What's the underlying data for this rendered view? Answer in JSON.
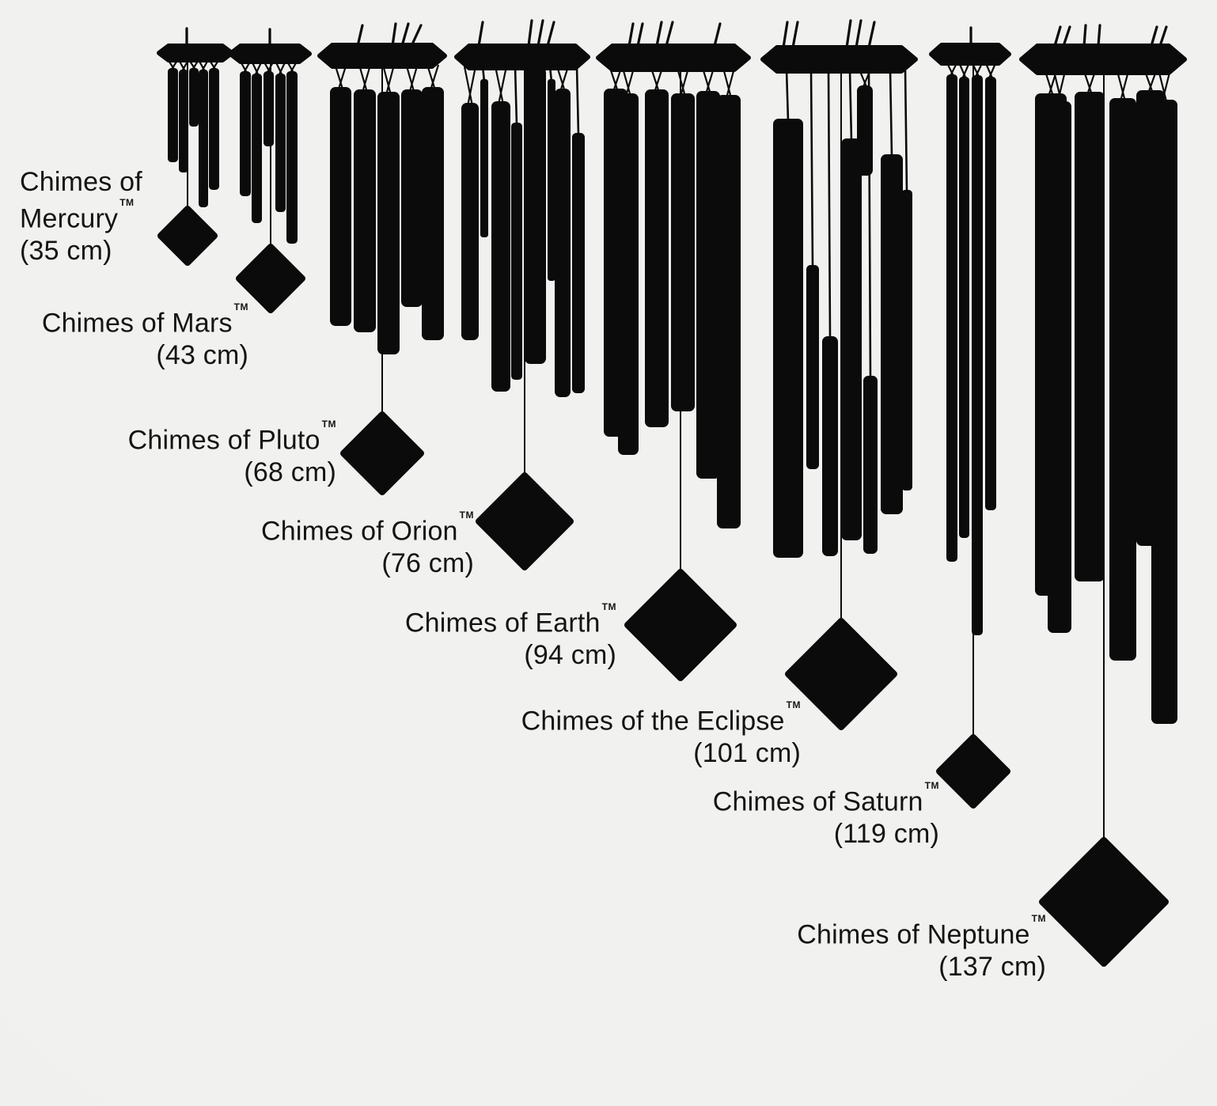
{
  "trademark": "TM",
  "chimes": [
    {
      "name": "Chimes of Mercury",
      "size": "(35 cm)"
    },
    {
      "name": "Chimes of Mars",
      "size": "(43 cm)"
    },
    {
      "name": "Chimes of Pluto",
      "size": "(68 cm)"
    },
    {
      "name": "Chimes of Orion",
      "size": "(76 cm)"
    },
    {
      "name": "Chimes of Earth",
      "size": "(94 cm)"
    },
    {
      "name": "Chimes of the Eclipse",
      "size": "(101 cm)"
    },
    {
      "name": "Chimes of Saturn",
      "size": "(119 cm)"
    },
    {
      "name": "Chimes of Neptune",
      "size": "(137 cm)"
    }
  ],
  "colors": {
    "background": "#efefed",
    "silhouette": "#0b0b0b",
    "text": "#141414"
  }
}
